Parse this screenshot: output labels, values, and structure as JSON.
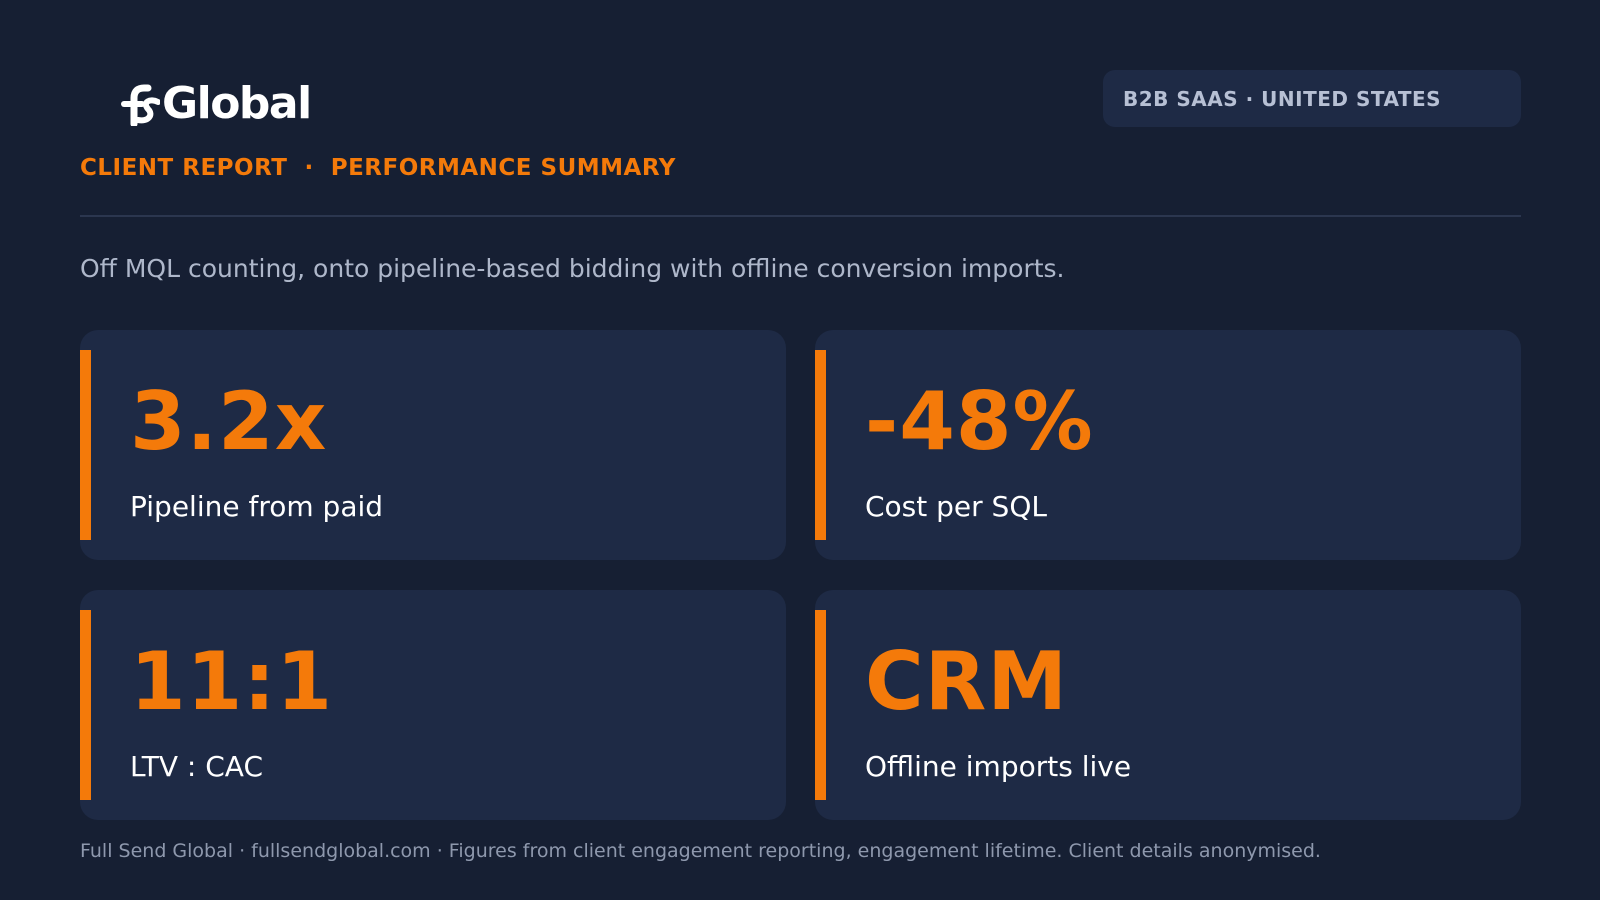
{
  "brand": {
    "logo_text": "Global",
    "logo_mark": "fs-monogram-icon"
  },
  "header": {
    "kicker": "CLIENT REPORT  ·  PERFORMANCE SUMMARY",
    "tag": "B2B SAAS · UNITED STATES"
  },
  "lead": "Off MQL counting, onto pipeline-based bidding with offline conversion imports.",
  "metrics": [
    {
      "value": "3.2x",
      "label": "Pipeline from paid"
    },
    {
      "value": "-48%",
      "label": "Cost per SQL"
    },
    {
      "value": "11:1",
      "label": "LTV : CAC"
    },
    {
      "value": "CRM",
      "label": "Offline imports live"
    }
  ],
  "footer": "Full Send Global · fullsendglobal.com · Figures from client engagement reporting, engagement lifetime. Client details anonymised.",
  "colors": {
    "accent": "#f47a0a",
    "background": "#161f33",
    "card": "#1e2a45"
  }
}
